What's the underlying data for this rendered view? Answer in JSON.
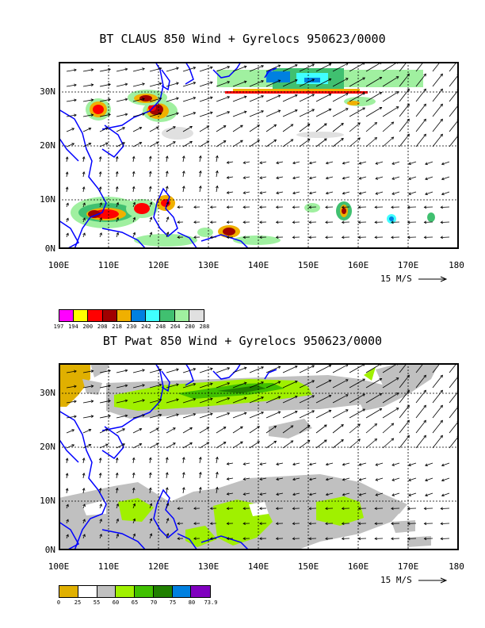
{
  "panels": [
    {
      "title": "BT CLAUS 850 Wind + Gyrelocs 950623/0000",
      "legend_colors": [
        "#ff00ff",
        "#ffff00",
        "#ff0000",
        "#a00000",
        "#f0b000",
        "#0080e0",
        "#40ffff",
        "#40c070",
        "#a0f0a0",
        "#e0e0e0"
      ],
      "legend_labels": [
        "197",
        "194",
        "200",
        "208",
        "218",
        "230",
        "242",
        "248",
        "264",
        "280",
        "288"
      ]
    },
    {
      "title": "BT Pwat 850 Wind + Gyrelocs 950623/0000",
      "legend_colors": [
        "#e0b000",
        "#ffffff",
        "#c0c0c0",
        "#a0f000",
        "#40c000",
        "#208000",
        "#0080e0",
        "#8000c0"
      ],
      "legend_labels": [
        "0",
        "25",
        "55",
        "60",
        "65",
        "70",
        "75",
        "80",
        "73.9"
      ]
    }
  ],
  "x_ticks": [
    "100E",
    "110E",
    "120E",
    "130E",
    "140E",
    "150E",
    "160E",
    "170E",
    "180"
  ],
  "y_ticks": [
    "0N",
    "10N",
    "20N",
    "30N"
  ],
  "ref_vector": "15 M/S",
  "colors": {
    "coast": "#0000ff",
    "frame": "#000000"
  }
}
